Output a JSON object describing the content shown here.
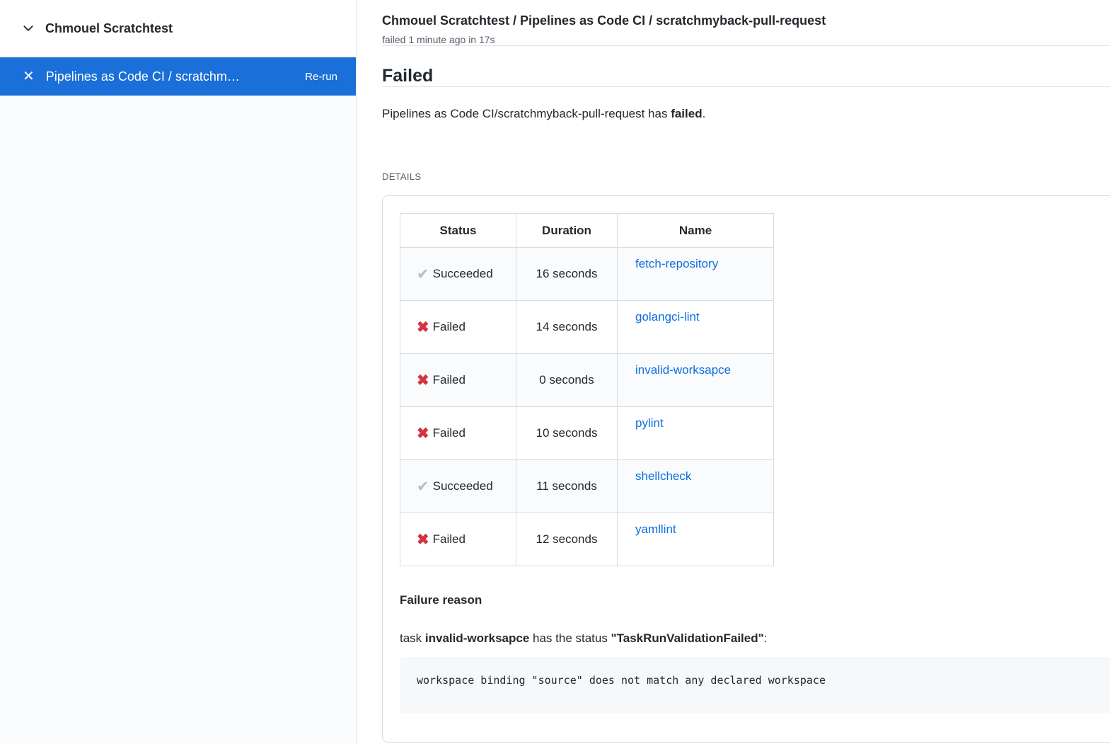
{
  "colors": {
    "selected_blue": "#1a6fd8",
    "link_blue": "#0d6fe0",
    "fail_red": "#d23440",
    "success_gray": "#b6bcc2"
  },
  "icons": {
    "chevron_down": "⌄",
    "x_white": "✕",
    "check": "✔",
    "x_red": "✖"
  },
  "sidebar": {
    "group": {
      "label": "Chmouel Scratchtest"
    },
    "selected_check": {
      "label": "Pipelines as Code CI / scratchm…",
      "rerun_label": "Re-run"
    }
  },
  "header": {
    "title": "Chmouel Scratchtest / Pipelines as Code CI / scratchmyback-pull-request",
    "subtitle": "failed 1 minute ago in 17s"
  },
  "summary": {
    "heading": "Failed",
    "message_prefix": "Pipelines as Code CI/scratchmyback-pull-request has ",
    "message_bold": "failed",
    "message_suffix": "."
  },
  "details": {
    "label": "DETAILS",
    "table": {
      "headers": [
        "Status",
        "Duration",
        "Name"
      ],
      "rows": [
        {
          "icon": "check",
          "status": "Succeeded",
          "duration": "16 seconds",
          "name": "fetch-repository"
        },
        {
          "icon": "x",
          "status": "Failed",
          "duration": "14 seconds",
          "name": "golangci-lint"
        },
        {
          "icon": "x",
          "status": "Failed",
          "duration": "0 seconds",
          "name": "invalid-worksapce"
        },
        {
          "icon": "x",
          "status": "Failed",
          "duration": "10 seconds",
          "name": "pylint"
        },
        {
          "icon": "check",
          "status": "Succeeded",
          "duration": "11 seconds",
          "name": "shellcheck"
        },
        {
          "icon": "x",
          "status": "Failed",
          "duration": "12 seconds",
          "name": "yamllint"
        }
      ]
    },
    "failure_reason": {
      "heading": "Failure reason",
      "p1": "task ",
      "b1": "invalid-worksapce",
      "p2": " has the status ",
      "b2": "\"TaskRunValidationFailed\"",
      "p3": ":",
      "code": "workspace binding \"source\" does not match any declared workspace"
    }
  }
}
